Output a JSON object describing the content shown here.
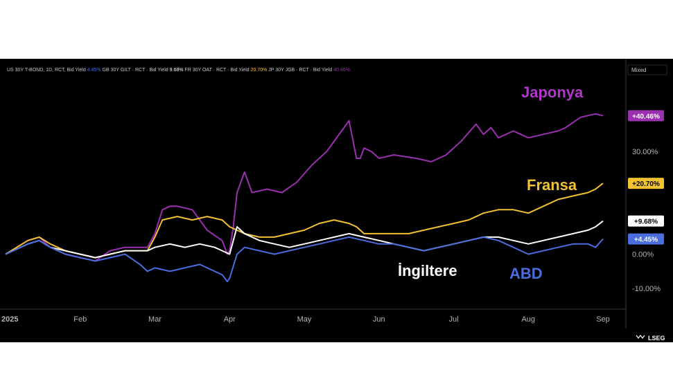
{
  "header": {
    "series": [
      {
        "label": "US 30Y T-BOND, 1D, RCT, Bid Yield",
        "value": "4.45%",
        "color": "#4a6de0"
      },
      {
        "label": "GB 30Y GILT · RCT · Bid Yield",
        "value": "9.68%",
        "color": "#ffffff"
      },
      {
        "label": "FR 30Y OAT · RCT · Bid Yield",
        "value": "20.70%",
        "color": "#f2c233"
      },
      {
        "label": "JP 30Y JGB · RCT · Bid Yield",
        "value": "40.46%",
        "color": "#9a2fb0"
      }
    ],
    "scale_mode": "Mixed"
  },
  "brand": "LSEG",
  "callouts": {
    "japan": "Japonya",
    "france": "Fransa",
    "uk": "İngiltere",
    "us": "ABD"
  },
  "badges": {
    "japan": "+40.46%",
    "france": "+20.70%",
    "uk": "+9.68%",
    "us": "+4.45%"
  },
  "chart_data": {
    "type": "line",
    "title": "",
    "x_ticks": [
      "2025",
      "Feb",
      "Mar",
      "Apr",
      "May",
      "Jun",
      "Jul",
      "Aug",
      "Sep"
    ],
    "y_ticks": [
      "30.00%",
      "0.00%",
      "-10.00%"
    ],
    "ylim": [
      -12,
      48
    ],
    "x_unit": "month index (0 = Jan 2025, 8 = Sep 2025)",
    "grid": false,
    "series": [
      {
        "name": "JP 30Y JGB",
        "color": "#9a2fb0",
        "x": [
          0,
          0.3,
          0.45,
          0.6,
          0.8,
          1.0,
          1.2,
          1.4,
          1.6,
          1.9,
          2.0,
          2.1,
          2.2,
          2.3,
          2.5,
          2.7,
          2.9,
          2.97,
          3.0,
          3.05,
          3.1,
          3.2,
          3.3,
          3.5,
          3.7,
          3.9,
          4.1,
          4.3,
          4.5,
          4.6,
          4.7,
          4.75,
          4.8,
          4.9,
          5.0,
          5.2,
          5.5,
          5.7,
          5.9,
          6.1,
          6.3,
          6.4,
          6.5,
          6.6,
          6.8,
          7.0,
          7.2,
          7.4,
          7.5,
          7.7,
          7.9,
          8.0
        ],
        "y": [
          0,
          4,
          5,
          2,
          0,
          -1,
          -2,
          1,
          2,
          2,
          6,
          13,
          14,
          14,
          13,
          7,
          4,
          0,
          1,
          8,
          18,
          24,
          18,
          19,
          18,
          21,
          26,
          30,
          36,
          39,
          28,
          28,
          31,
          30,
          28,
          29,
          28,
          27,
          29,
          33,
          38,
          35,
          37,
          34,
          36,
          34,
          35,
          36,
          37,
          40,
          41,
          40.46
        ]
      },
      {
        "name": "FR 30Y OAT",
        "color": "#f2c233",
        "x": [
          0,
          0.3,
          0.45,
          0.6,
          0.8,
          1.0,
          1.2,
          1.4,
          1.6,
          1.9,
          2.0,
          2.1,
          2.3,
          2.5,
          2.7,
          2.9,
          3.0,
          3.2,
          3.4,
          3.6,
          3.8,
          4.0,
          4.2,
          4.4,
          4.6,
          4.7,
          4.8,
          5.0,
          5.2,
          5.4,
          5.6,
          5.8,
          6.0,
          6.2,
          6.4,
          6.6,
          6.8,
          7.0,
          7.2,
          7.4,
          7.6,
          7.8,
          7.9,
          8.0
        ],
        "y": [
          0,
          4,
          5,
          3,
          1,
          0,
          -1,
          0,
          1,
          1,
          5,
          10,
          11,
          10,
          11,
          10,
          8,
          6,
          5,
          5,
          6,
          7,
          9,
          10,
          9,
          8,
          6,
          6,
          6,
          6,
          7,
          8,
          9,
          10,
          12,
          13,
          13,
          12,
          14,
          16,
          17,
          18,
          19,
          20.7
        ]
      },
      {
        "name": "GB 30Y GILT",
        "color": "#ffffff",
        "x": [
          0,
          0.3,
          0.45,
          0.6,
          0.8,
          1.0,
          1.2,
          1.4,
          1.6,
          1.9,
          2.0,
          2.2,
          2.4,
          2.6,
          2.8,
          2.9,
          3.0,
          3.1,
          3.2,
          3.4,
          3.6,
          3.8,
          4.0,
          4.2,
          4.4,
          4.6,
          4.8,
          5.0,
          5.2,
          5.4,
          5.6,
          5.8,
          6.0,
          6.2,
          6.4,
          6.6,
          6.8,
          7.0,
          7.2,
          7.4,
          7.6,
          7.8,
          7.9,
          8.0
        ],
        "y": [
          0,
          3,
          4,
          2,
          1,
          0,
          -1,
          0,
          1,
          1,
          2,
          3,
          2,
          3,
          2,
          1,
          0,
          8,
          6,
          4,
          3,
          2,
          3,
          4,
          5,
          6,
          5,
          4,
          3,
          2,
          1,
          2,
          3,
          4,
          5,
          5,
          4,
          3,
          4,
          5,
          6,
          7,
          8,
          9.68
        ]
      },
      {
        "name": "US 30Y T-BOND",
        "color": "#4a6de0",
        "x": [
          0,
          0.3,
          0.45,
          0.6,
          0.8,
          1.0,
          1.2,
          1.4,
          1.6,
          1.8,
          1.9,
          2.0,
          2.2,
          2.4,
          2.6,
          2.8,
          2.9,
          2.97,
          3.0,
          3.1,
          3.2,
          3.4,
          3.6,
          3.8,
          4.0,
          4.2,
          4.4,
          4.6,
          4.8,
          5.0,
          5.2,
          5.4,
          5.6,
          5.8,
          6.0,
          6.2,
          6.4,
          6.6,
          6.8,
          7.0,
          7.2,
          7.4,
          7.6,
          7.8,
          7.9,
          8.0
        ],
        "y": [
          0,
          3,
          4,
          2,
          0,
          -1,
          -2,
          -1,
          0,
          -3,
          -5,
          -4,
          -5,
          -4,
          -3,
          -5,
          -6,
          -8,
          -7,
          0,
          2,
          1,
          0,
          1,
          2,
          3,
          4,
          5,
          4,
          3,
          3,
          2,
          1,
          2,
          3,
          4,
          5,
          4,
          2,
          0,
          1,
          2,
          3,
          3,
          2,
          4.45
        ]
      }
    ]
  }
}
